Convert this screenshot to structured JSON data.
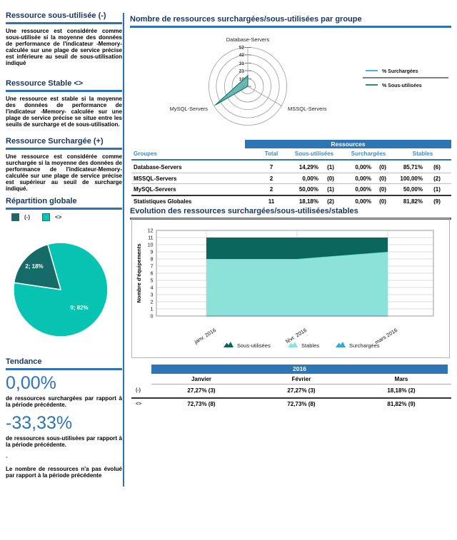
{
  "colors": {
    "accent_blue": "#2E74B5",
    "band_blue": "#2E75B6",
    "heading_navy": "#17365D",
    "table_header_blue": "#3C8DC5",
    "big_number_blue": "#2E74B5",
    "teal_dark": "#156B68",
    "teal_light": "#06C3B2",
    "area_dark": "#0B665E",
    "area_light": "#8CE1D9",
    "line_blue": "#29ABE2"
  },
  "sidebar": {
    "sections": [
      {
        "title": "Ressource sous-utilisée (-)",
        "pre": "Une ressource est considérée comme sous-utilisée si la moyenne des données de performance de l'indicateur ",
        "bold": "-Memory-",
        "post": " calculée sur une plage de service précise est inférieure au seuil de sous-utilisation indiqué"
      },
      {
        "title": "Ressource Stable <>",
        "pre": "Une ressource est stable si la moyenne des données de performance de l'indicateur ",
        "bold": "-Memory-",
        "post": " calculée sur une plage de service précise se situe entre les seuils de surcharge et de sous-utilisation."
      },
      {
        "title": "Ressource Surchargée (+)",
        "pre": "Une ressource est considérée comme surchargée si la moyenne des données de performance de l'indicateur",
        "bold": "-Memory-",
        "post": " calculée sur une plage de service précise est supérieur au seuil de surcharge indiqué."
      }
    ],
    "repartition": {
      "title": "Répartition globale",
      "legend": [
        {
          "label": "(-)"
        },
        {
          "label": "<>"
        }
      ]
    },
    "tendance": {
      "title": "Tendance",
      "stat1": {
        "value": "0,00%",
        "caption": "de ressources surchargées par rapport à la période précédente."
      },
      "stat2": {
        "value": "-33,33%",
        "caption": "de ressources sous-utilisées par rapport à la période précédente."
      },
      "dash": "-",
      "note": "Le nombre de ressources n'a pas évolué par rapport à la période précédente"
    }
  },
  "main": {
    "radar_title": "Nombre de ressources surchargées/sous-utilisées par groupe",
    "evolution_title": "Evolution des ressources surchargées/sous-utilisées/stables",
    "table1": {
      "band": "Ressources",
      "headers": {
        "groupes": "Groupes",
        "total": "Total",
        "sous": "Sous-utilisées",
        "sur": "Surchargées",
        "stables": "Stables"
      },
      "rows": [
        {
          "name": "Database-Servers",
          "total": "7",
          "sous_pct": "14,29%",
          "sous_n": "(1)",
          "sur_pct": "0,00%",
          "sur_n": "(0)",
          "st_pct": "85,71%",
          "st_n": "(6)"
        },
        {
          "name": "MSSQL-Servers",
          "total": "2",
          "sous_pct": "0,00%",
          "sous_n": "(0)",
          "sur_pct": "0,00%",
          "sur_n": "(0)",
          "st_pct": "100,00%",
          "st_n": "(2)"
        },
        {
          "name": "MySQL-Servers",
          "total": "2",
          "sous_pct": "50,00%",
          "sous_n": "(1)",
          "sur_pct": "0,00%",
          "sur_n": "(0)",
          "st_pct": "50,00%",
          "st_n": "(1)"
        }
      ],
      "total_row": {
        "name": "Statistiques Globales",
        "total": "11",
        "sous_pct": "18,18%",
        "sous_n": "(2)",
        "sur_pct": "0,00%",
        "sur_n": "(0)",
        "st_pct": "81,82%",
        "st_n": "(9)"
      }
    },
    "table2": {
      "band": "2016",
      "headers": [
        "Janvier",
        "Février",
        "Mars"
      ],
      "rows": [
        {
          "label": "(-)",
          "values": [
            "27,27% (3)",
            "27,27% (3)",
            "18,18% (2)"
          ]
        },
        {
          "label": "<>",
          "values": [
            "72,73% (8)",
            "72,73% (8)",
            "81,82% (9)"
          ]
        }
      ]
    }
  },
  "chart_data": [
    {
      "type": "radar",
      "title": "Nombre de ressources surchargées/sous-utilisées par groupe",
      "axes": [
        "Database-Servers",
        "MSSQL-Servers",
        "MySQL-Servers"
      ],
      "rmax": 52.4,
      "ticks": [
        0,
        10,
        21,
        31,
        42,
        52
      ],
      "legend_position": "right",
      "series": [
        {
          "name": "% Surchargées",
          "color": "#29ABE2",
          "fill": "none",
          "values": [
            0,
            0,
            0
          ]
        },
        {
          "name": "% Sous-utilisées",
          "color": "#127873",
          "fill": "#5FAFA8",
          "values": [
            14.29,
            0,
            50
          ]
        }
      ]
    },
    {
      "type": "pie",
      "title": "Répartition globale",
      "labels": [
        "(-)",
        "<>"
      ],
      "values": [
        2,
        9
      ],
      "pcts": [
        18.18,
        81.82
      ],
      "slice_labels": [
        "2; 18%",
        "9; 82%"
      ],
      "colors": [
        "#156B68",
        "#06C3B2"
      ],
      "start_angle_deg": 106
    },
    {
      "type": "area",
      "stacked": true,
      "title": "Evolution des ressources surchargées/sous-utilisées/stables",
      "ylabel": "Nombre d'équipements",
      "ylim": [
        0,
        12
      ],
      "x": [
        "janv. 2016",
        "févr. 2016",
        "mars 2016"
      ],
      "series": [
        {
          "name": "Sous-utilisées",
          "color": "#0B665E",
          "values": [
            3,
            3,
            2
          ]
        },
        {
          "name": "Stables",
          "color": "#8CE1D9",
          "edge": "#4FCFC2",
          "values": [
            8,
            8,
            9
          ]
        },
        {
          "name": "Surchargées",
          "color": "#29ABE2",
          "values": [
            0,
            0,
            0
          ]
        }
      ]
    }
  ]
}
